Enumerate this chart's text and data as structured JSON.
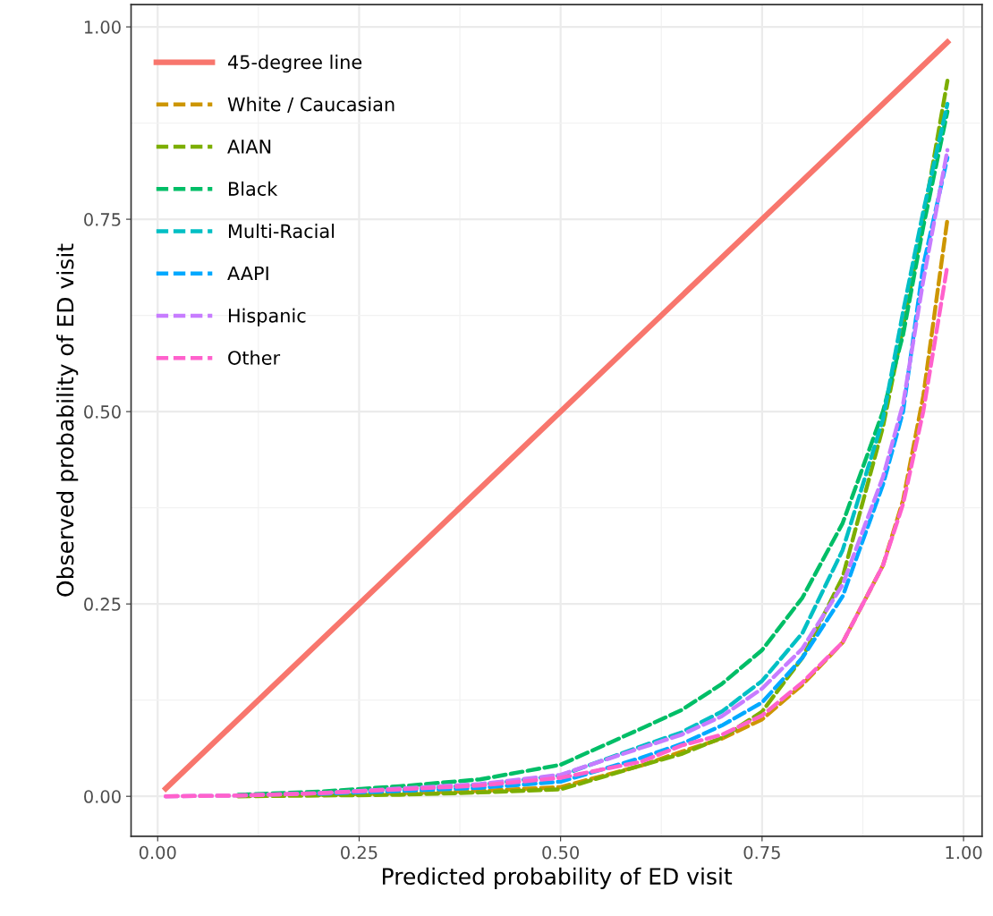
{
  "chart_data": {
    "type": "line",
    "xlabel": "Predicted probability of ED visit",
    "ylabel": "Observed probability of ED visit",
    "x": [
      0.01,
      0.1,
      0.2,
      0.3,
      0.4,
      0.5,
      0.6,
      0.65,
      0.7,
      0.75,
      0.8,
      0.85,
      0.9,
      0.925,
      0.95,
      0.98
    ],
    "xlim": [
      -0.033,
      1.023
    ],
    "xticks": [
      {
        "value": 0,
        "label": "0.00"
      },
      0.25,
      {
        "value": 0.5,
        "label": "0.50"
      },
      0.75,
      {
        "value": 1,
        "label": "1.00"
      }
    ],
    "ylim": [
      -0.052,
      1.029
    ],
    "yticks": [
      {
        "value": 0,
        "label": "0.00"
      },
      0.25,
      {
        "value": 0.5,
        "label": "0.50"
      },
      0.75,
      {
        "value": 1,
        "label": "1.00"
      }
    ],
    "grid": true,
    "legend": "top left",
    "series": [
      {
        "name": "45-degree line",
        "color": "#f8766d",
        "line_style": "solid",
        "x": [
          0.01,
          0.98
        ],
        "values": [
          0.01,
          0.98
        ]
      },
      {
        "name": "White / Caucasian",
        "color": "#cd9600",
        "line_style": "dashed",
        "values": [
          null,
          null,
          0.002,
          0.004,
          0.007,
          0.012,
          0.04,
          0.058,
          0.075,
          0.1,
          0.145,
          0.2,
          0.3,
          0.385,
          0.52,
          0.75
        ]
      },
      {
        "name": "AIAN",
        "color": "#7cae00",
        "line_style": "dashed",
        "values": [
          null,
          0,
          0.001,
          0.002,
          0.005,
          0.009,
          0.04,
          0.055,
          0.076,
          0.11,
          0.18,
          0.285,
          0.48,
          0.61,
          0.75,
          0.93
        ]
      },
      {
        "name": "Black",
        "color": "#00be67",
        "line_style": "dashed",
        "values": [
          null,
          0.002,
          0.006,
          0.013,
          0.022,
          0.041,
          0.088,
          0.112,
          0.146,
          0.19,
          0.258,
          0.355,
          0.5,
          0.6,
          0.74,
          0.89
        ]
      },
      {
        "name": "Multi-Racial",
        "color": "#00bfc4",
        "line_style": "dashed",
        "values": [
          null,
          null,
          0.004,
          0.009,
          0.015,
          0.027,
          0.065,
          0.083,
          0.11,
          0.15,
          0.212,
          0.32,
          0.49,
          0.63,
          0.76,
          0.9
        ]
      },
      {
        "name": "AAPI",
        "color": "#00a9ff",
        "line_style": "dashed",
        "values": [
          null,
          null,
          0.003,
          0.007,
          0.011,
          0.019,
          0.05,
          0.068,
          0.092,
          0.122,
          0.18,
          0.26,
          0.405,
          0.5,
          0.69,
          0.83
        ]
      },
      {
        "name": "Hispanic",
        "color": "#c77cff",
        "line_style": "dashed",
        "values": [
          0,
          0.001,
          0.004,
          0.01,
          0.016,
          0.028,
          0.063,
          0.08,
          0.104,
          0.14,
          0.192,
          0.275,
          0.415,
          0.51,
          0.67,
          0.84
        ]
      },
      {
        "name": "Other",
        "color": "#ff61cc",
        "line_style": "dashed",
        "values": [
          0,
          0.001,
          0.004,
          0.009,
          0.014,
          0.024,
          0.045,
          0.066,
          0.08,
          0.105,
          0.148,
          0.2,
          0.3,
          0.38,
          0.5,
          0.69
        ]
      }
    ]
  }
}
